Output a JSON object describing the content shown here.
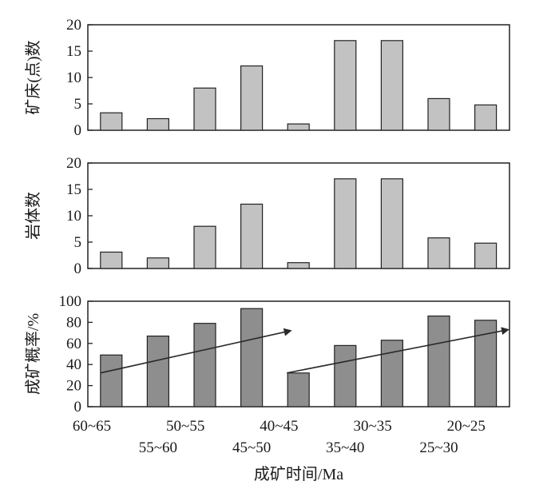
{
  "chart_data": [
    {
      "type": "bar",
      "ylabel": "矿床(点)数",
      "ylim": [
        0,
        20
      ],
      "yticks": [
        0,
        5,
        10,
        15,
        20
      ],
      "categories": [
        "60~65",
        "55~60",
        "50~55",
        "45~50",
        "40~45",
        "35~40",
        "30~35",
        "25~30",
        "20~25"
      ],
      "values": [
        3.3,
        2.2,
        8,
        12.2,
        1.2,
        17,
        17,
        6,
        4.8
      ],
      "bar_color": "#c2c2c2"
    },
    {
      "type": "bar",
      "ylabel": "岩体数",
      "ylim": [
        0,
        20
      ],
      "yticks": [
        0,
        5,
        10,
        15,
        20
      ],
      "categories": [
        "60~65",
        "55~60",
        "50~55",
        "45~50",
        "40~45",
        "35~40",
        "30~35",
        "25~30",
        "20~25"
      ],
      "values": [
        3.1,
        2,
        8,
        12.2,
        1.1,
        17,
        17,
        5.8,
        4.8
      ],
      "bar_color": "#c2c2c2"
    },
    {
      "type": "bar",
      "ylabel": "成矿概率/%",
      "xlabel": "成矿时间/Ma",
      "ylim": [
        0,
        100
      ],
      "yticks": [
        0,
        20,
        40,
        60,
        80,
        100
      ],
      "categories": [
        "60~65",
        "55~60",
        "50~55",
        "45~50",
        "40~45",
        "35~40",
        "30~35",
        "25~30",
        "20~25"
      ],
      "values": [
        49,
        67,
        79,
        93,
        32,
        58,
        63,
        86,
        82
      ],
      "bar_color": "#8e8e8e",
      "trend_arrows": [
        {
          "from_category": "60~65",
          "from_value": 32,
          "to_category": "40~45",
          "to_value": 72
        },
        {
          "from_category": "40~45",
          "from_value": 32,
          "to_category": "20~25",
          "to_value": 73
        }
      ]
    }
  ]
}
